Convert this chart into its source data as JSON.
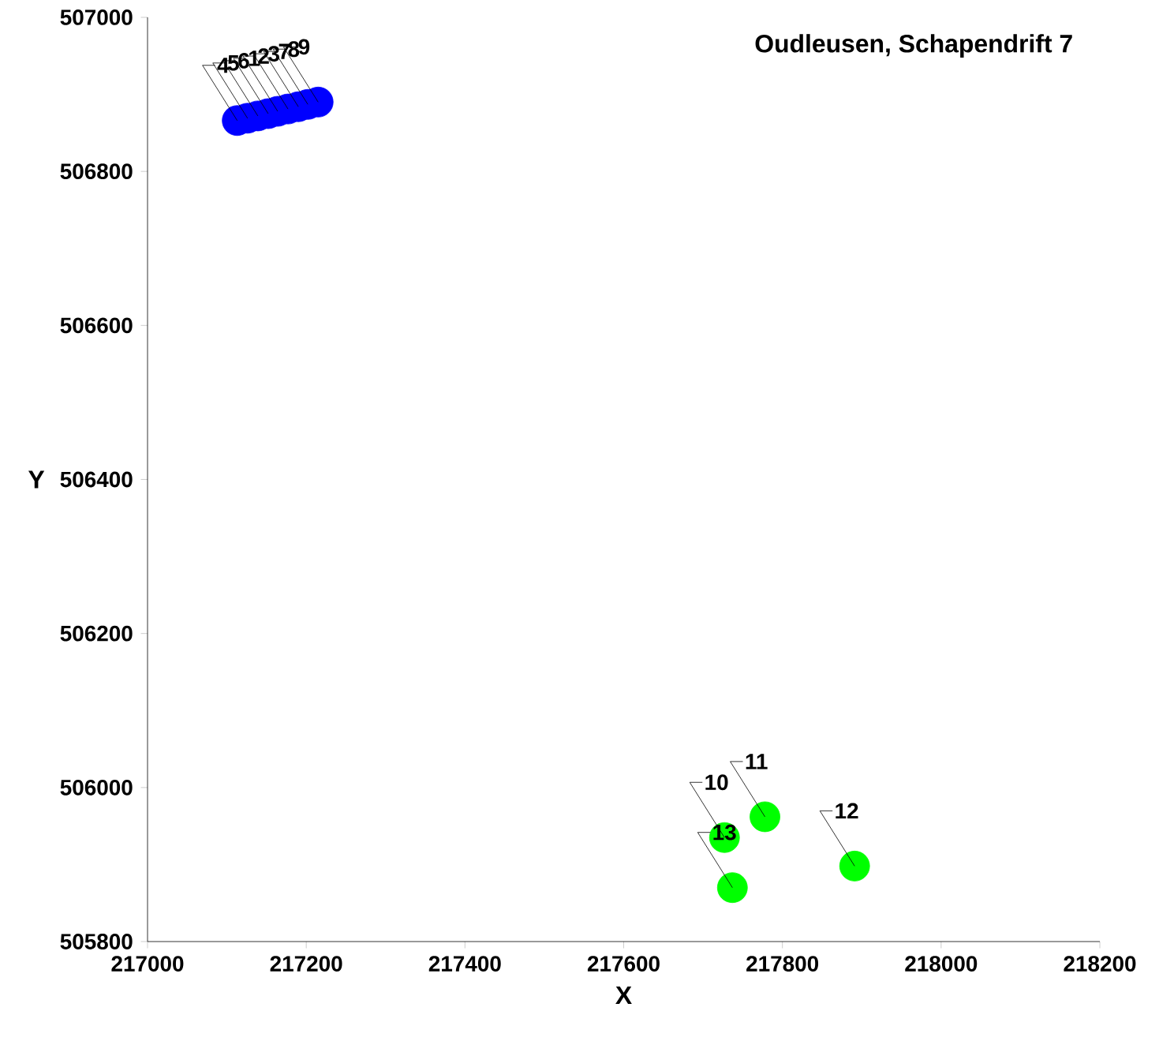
{
  "chart_data": {
    "type": "scatter",
    "title": "Oudleusen, Schapendrift 7",
    "xlabel": "X",
    "ylabel": "Y",
    "xlim": [
      217000,
      218200
    ],
    "xticks": [
      217000,
      217200,
      217400,
      217600,
      217800,
      218000,
      218200
    ],
    "ylim": [
      505800,
      507000
    ],
    "yticks": [
      505800,
      506000,
      506200,
      506400,
      506600,
      506800,
      507000
    ],
    "grid": false,
    "marker": "circle",
    "series": [
      {
        "color": "#0000ff",
        "x": [
          217113,
          217126,
          217139,
          217152,
          217164,
          217177,
          217190,
          217202,
          217215
        ],
        "values": [
          506866,
          506869,
          506872,
          506875,
          506878,
          506881,
          506884,
          506887,
          506890
        ]
      },
      {
        "color": "#00ff00",
        "x": [
          217727,
          217778,
          217891,
          217737
        ],
        "values": [
          505935,
          505962,
          505898,
          505870
        ]
      }
    ],
    "annotations": [
      {
        "text": "4",
        "x": 217113,
        "y": 506866
      },
      {
        "text": "5",
        "x": 217126,
        "y": 506869
      },
      {
        "text": "6",
        "x": 217139,
        "y": 506872
      },
      {
        "text": "1",
        "x": 217152,
        "y": 506875
      },
      {
        "text": "2",
        "x": 217164,
        "y": 506878
      },
      {
        "text": "3",
        "x": 217177,
        "y": 506881
      },
      {
        "text": "7",
        "x": 217190,
        "y": 506884
      },
      {
        "text": "8",
        "x": 217202,
        "y": 506887
      },
      {
        "text": "9",
        "x": 217215,
        "y": 506890
      },
      {
        "text": "10",
        "x": 217727,
        "y": 505935
      },
      {
        "text": "11",
        "x": 217778,
        "y": 505962
      },
      {
        "text": "12",
        "x": 217891,
        "y": 505898
      },
      {
        "text": "13",
        "x": 217737,
        "y": 505870
      }
    ]
  }
}
